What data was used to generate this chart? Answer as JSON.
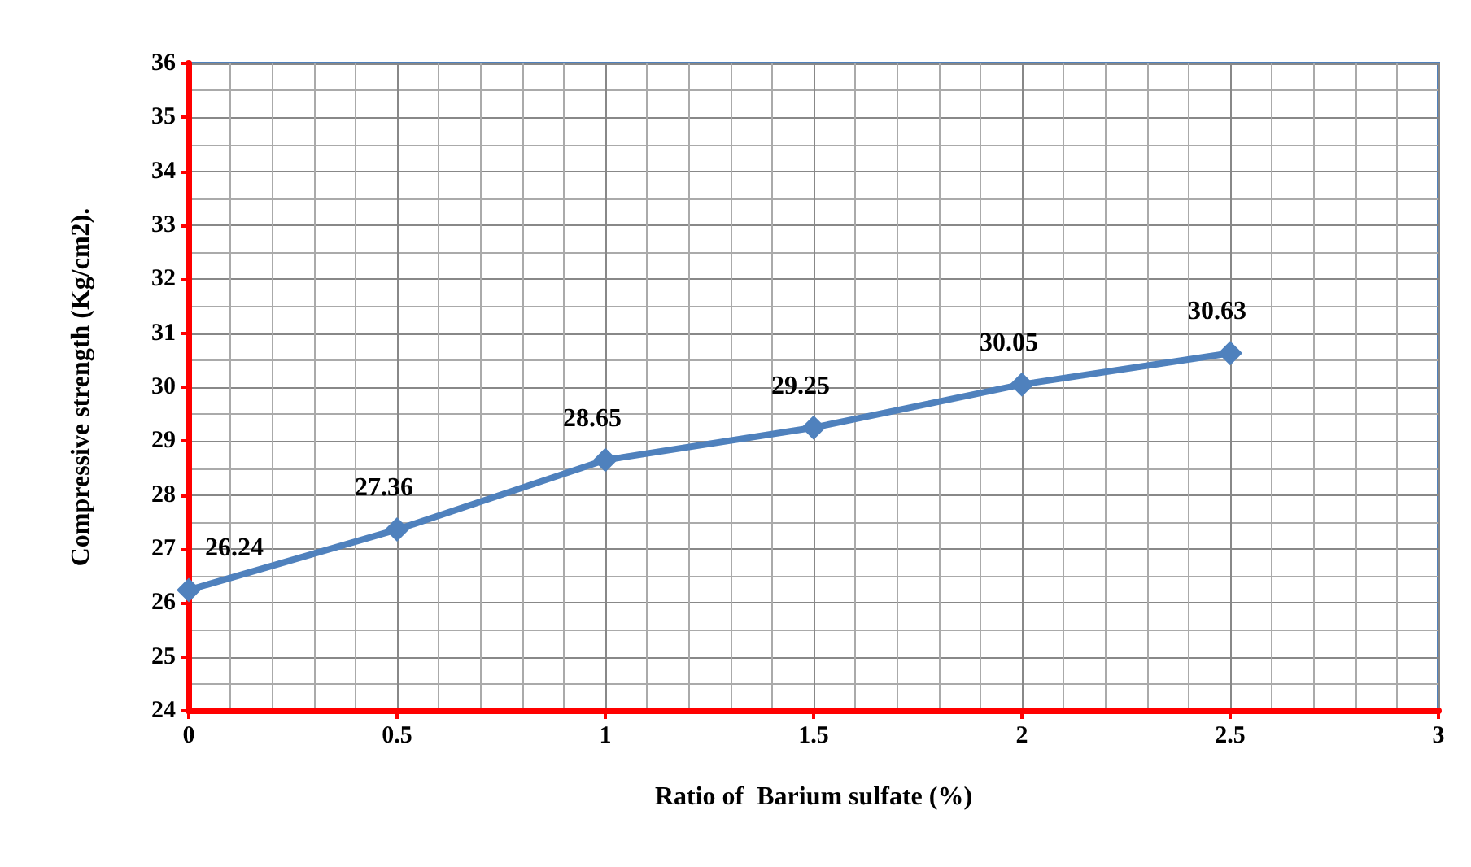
{
  "chart_data": {
    "type": "line",
    "xlabel": "Ratio of  Barium sulfate (%)",
    "ylabel": "Compressive strength (Kg/cm2).",
    "x": [
      0,
      0.5,
      1,
      1.5,
      2,
      2.5
    ],
    "series": [
      {
        "color": "#4f81bd",
        "values": [
          26.24,
          27.36,
          28.65,
          29.25,
          30.05,
          30.63
        ]
      }
    ],
    "xlim": [
      0,
      3
    ],
    "xticks": [
      0,
      0.5,
      1,
      1.5,
      2,
      2.5,
      3
    ],
    "ylim": [
      24,
      36
    ],
    "yticks": [
      24,
      25,
      26,
      27,
      28,
      29,
      30,
      31,
      32,
      33,
      34,
      35,
      36
    ],
    "grid": true,
    "marker": "diamond",
    "line_style": "solid",
    "data_labels": true
  }
}
